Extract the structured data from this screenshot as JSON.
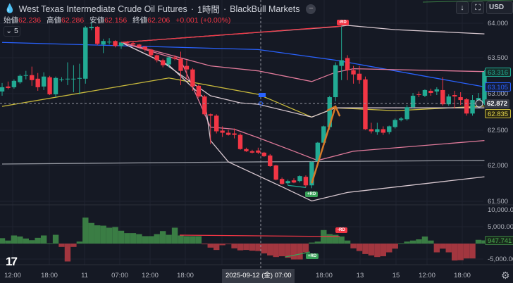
{
  "header": {
    "symbol_icon": "oil-drop-icon",
    "title": "West Texas Intermediate Crude Oil Futures",
    "interval": "1時間",
    "broker": "BlackBull Markets",
    "separator": "·"
  },
  "ohlc": {
    "open_label": "始値",
    "open": "62.236",
    "high_label": "高値",
    "high": "62.286",
    "low_label": "安値",
    "low": "62.156",
    "close_label": "終値",
    "close": "62.206",
    "change": "+0.001 (+0.00%)"
  },
  "indicators_toggle": {
    "icon": "chevron-down-icon",
    "count": "5"
  },
  "toolbar": {
    "scroll_icon": "arrow-down-icon",
    "fullscreen_icon": "fullscreen-icon",
    "currency": "USD"
  },
  "colors": {
    "background": "#151924",
    "up": "#22ab94",
    "down": "#f23645",
    "hist_up": "#3a7d44",
    "hist_down": "#a2363f",
    "ma_blue": "#2962ff",
    "ma_yellow": "#c8b93c",
    "band_pink": "#e07a9a",
    "band_white": "#d8c8d0",
    "gray_line": "#9598a1"
  },
  "price_axis": {
    "labels": [
      "64.000",
      "63.500",
      "63.000",
      "62.500",
      "62.000",
      "61.500"
    ],
    "last_close": "63.316",
    "blue_ma": "63.105",
    "crosshair": "62.872",
    "yellow_ma": "62.835"
  },
  "hist_axis": {
    "labels": [
      "10,000.00",
      "5,000.00",
      "-5,000.00"
    ],
    "last": "947.741"
  },
  "time_axis": {
    "labels": [
      "12:00",
      "18:00",
      "11",
      "07:00",
      "12:00",
      "18:00",
      "18:00",
      "13",
      "15",
      "12:00",
      "18:00"
    ],
    "crosshair": "2025-09-12 (金)  07:00",
    "settings_icon": "gear-icon"
  },
  "annotations": {
    "rd_top": "-RD",
    "rd_bottom": "+RD",
    "hist_rd_top": "-RD",
    "hist_rd_bottom": "+RD"
  },
  "logo": "TV",
  "chart_data": {
    "type": "candlestick",
    "ylim": [
      61.45,
      64.15
    ],
    "candles": [
      [
        63.04,
        63.16,
        62.98,
        63.1
      ],
      [
        63.11,
        63.18,
        63.07,
        63.09
      ],
      [
        63.1,
        63.21,
        63.08,
        63.19
      ],
      [
        63.17,
        63.28,
        63.15,
        63.26
      ],
      [
        63.27,
        63.33,
        63.21,
        63.27
      ],
      [
        63.27,
        63.39,
        63.12,
        63.2
      ],
      [
        63.22,
        63.3,
        63.05,
        63.1
      ],
      [
        63.11,
        63.31,
        63.06,
        63.25
      ],
      [
        63.24,
        63.26,
        62.99,
        63.0
      ],
      [
        63.0,
        63.25,
        62.96,
        63.23
      ],
      [
        63.2,
        63.24,
        63.18,
        63.21
      ],
      [
        63.22,
        63.45,
        63.13,
        63.22
      ],
      [
        63.22,
        63.41,
        63.03,
        63.22
      ],
      [
        63.23,
        63.43,
        63.0,
        63.23
      ],
      [
        63.22,
        63.96,
        63.15,
        63.94
      ],
      [
        63.93,
        64.02,
        63.9,
        63.95
      ],
      [
        63.95,
        63.96,
        63.69,
        63.71
      ],
      [
        63.7,
        63.78,
        63.58,
        63.75
      ],
      [
        63.74,
        63.79,
        63.7,
        63.74
      ],
      [
        63.75,
        63.76,
        63.66,
        63.68
      ],
      [
        63.68,
        63.74,
        63.64,
        63.73
      ],
      [
        63.73,
        63.75,
        63.7,
        63.72
      ],
      [
        63.72,
        63.74,
        63.68,
        63.7
      ],
      [
        63.7,
        63.71,
        63.66,
        63.67
      ],
      [
        63.67,
        63.68,
        63.6,
        63.63
      ],
      [
        63.63,
        63.64,
        63.52,
        63.55
      ],
      [
        63.55,
        63.56,
        63.45,
        63.48
      ],
      [
        63.48,
        63.5,
        63.38,
        63.41
      ],
      [
        63.42,
        63.53,
        63.38,
        63.52
      ],
      [
        63.52,
        63.55,
        63.48,
        63.5
      ],
      [
        63.5,
        63.6,
        63.13,
        63.33
      ],
      [
        63.4,
        63.48,
        63.2,
        63.35
      ],
      [
        63.35,
        63.37,
        63.05,
        63.11
      ],
      [
        63.12,
        63.14,
        62.95,
        62.97
      ],
      [
        62.97,
        62.99,
        62.7,
        62.72
      ],
      [
        62.72,
        62.73,
        62.3,
        62.7
      ],
      [
        62.7,
        62.72,
        62.45,
        62.48
      ],
      [
        62.49,
        62.55,
        62.4,
        62.46
      ],
      [
        62.46,
        62.5,
        62.42,
        62.43
      ],
      [
        62.45,
        62.52,
        62.38,
        62.43
      ],
      [
        62.43,
        62.45,
        62.22,
        62.23
      ],
      [
        62.23,
        62.25,
        62.19,
        62.2
      ],
      [
        62.2,
        62.22,
        62.17,
        62.18
      ],
      [
        62.21,
        62.25,
        62.16,
        62.18
      ],
      [
        62.18,
        62.19,
        62.12,
        62.13
      ],
      [
        62.14,
        62.16,
        61.98,
        61.99
      ],
      [
        62.0,
        62.01,
        61.79,
        61.8
      ],
      [
        61.81,
        61.83,
        61.73,
        61.74
      ],
      [
        61.75,
        61.8,
        61.72,
        61.78
      ],
      [
        61.79,
        61.82,
        61.75,
        61.76
      ],
      [
        61.78,
        61.86,
        61.76,
        61.85
      ],
      [
        61.84,
        61.86,
        61.69,
        61.72
      ],
      [
        61.72,
        62.06,
        61.68,
        62.05
      ],
      [
        62.06,
        62.33,
        62.0,
        62.32
      ],
      [
        62.32,
        62.56,
        62.28,
        62.55
      ],
      [
        62.54,
        62.98,
        62.5,
        62.96
      ],
      [
        62.96,
        63.45,
        62.9,
        63.41
      ],
      [
        63.4,
        63.99,
        63.2,
        63.48
      ],
      [
        63.51,
        63.55,
        63.2,
        63.34
      ],
      [
        63.34,
        63.4,
        63.15,
        63.28
      ],
      [
        63.29,
        63.4,
        63.15,
        63.2
      ],
      [
        63.21,
        63.25,
        62.5,
        62.51
      ],
      [
        62.51,
        62.6,
        62.45,
        62.48
      ],
      [
        62.47,
        62.6,
        62.43,
        62.51
      ],
      [
        62.51,
        62.55,
        62.43,
        62.46
      ],
      [
        62.47,
        62.56,
        62.44,
        62.55
      ],
      [
        62.54,
        62.66,
        62.52,
        62.64
      ],
      [
        62.64,
        62.68,
        62.62,
        62.66
      ],
      [
        62.65,
        62.85,
        62.63,
        62.82
      ],
      [
        62.82,
        63.02,
        62.8,
        62.98
      ],
      [
        63.0,
        63.04,
        62.96,
        62.99
      ],
      [
        62.98,
        63.07,
        62.96,
        63.06
      ],
      [
        63.05,
        63.08,
        62.98,
        63.02
      ],
      [
        63.04,
        63.1,
        62.99,
        63.07
      ],
      [
        63.06,
        63.24,
        62.84,
        62.86
      ],
      [
        62.86,
        63.0,
        62.84,
        62.97
      ],
      [
        62.99,
        63.05,
        62.8,
        62.97
      ],
      [
        62.96,
        63.03,
        62.85,
        62.92
      ],
      [
        62.93,
        62.95,
        62.7,
        62.73
      ],
      [
        62.73,
        62.99,
        62.7,
        62.92
      ],
      [
        62.92,
        63.02,
        62.88,
        62.95
      ],
      [
        62.87,
        63.34,
        62.85,
        63.316
      ]
    ],
    "overlays": [
      {
        "color": "#2962ff",
        "points": [
          [
            0,
            63.73
          ],
          [
            43,
            63.63
          ],
          [
            56,
            63.48
          ],
          [
            81,
            63.105
          ]
        ]
      },
      {
        "color": "#c8b93c",
        "points": [
          [
            0,
            62.83
          ],
          [
            28,
            63.23
          ],
          [
            43,
            63.0
          ],
          [
            52,
            62.68
          ],
          [
            56,
            62.81
          ],
          [
            66,
            62.77
          ],
          [
            81,
            62.835
          ]
        ]
      },
      {
        "color": "#9598a1",
        "points": [
          [
            0,
            62.02
          ],
          [
            43,
            62.05
          ],
          [
            81,
            62.07
          ]
        ]
      },
      {
        "color": "#d8c8d0",
        "points": [
          [
            20,
            63.73
          ],
          [
            28,
            63.78
          ],
          [
            56,
            63.95
          ],
          [
            58,
            63.97
          ],
          [
            66,
            63.91
          ],
          [
            81,
            63.85
          ]
        ]
      },
      {
        "color": "#e07a9a",
        "points": [
          [
            20,
            63.73
          ],
          [
            27,
            63.58
          ],
          [
            35,
            63.4
          ],
          [
            43,
            63.33
          ],
          [
            52,
            63.18
          ],
          [
            56,
            63.31
          ],
          [
            59,
            63.36
          ],
          [
            81,
            63.32
          ]
        ]
      },
      {
        "color": "#e07a9a",
        "points": [
          [
            20,
            63.73
          ],
          [
            30,
            63.48
          ],
          [
            35,
            62.54
          ],
          [
            39,
            62.51
          ],
          [
            43,
            62.39
          ],
          [
            49,
            62.2
          ],
          [
            53,
            62.07
          ],
          [
            59,
            62.2
          ],
          [
            81,
            62.35
          ]
        ]
      },
      {
        "color": "#d8c8d0",
        "points": [
          [
            20,
            63.73
          ],
          [
            27,
            63.45
          ],
          [
            35,
            62.98
          ],
          [
            40,
            62.88
          ],
          [
            43,
            62.86
          ],
          [
            52,
            62.68
          ],
          [
            56,
            62.81
          ],
          [
            81,
            62.81
          ]
        ]
      },
      {
        "color": "#d8c8d0",
        "points": [
          [
            20,
            63.73
          ],
          [
            28,
            63.41
          ],
          [
            34,
            62.94
          ],
          [
            35,
            62.35
          ],
          [
            38,
            62.05
          ],
          [
            47,
            61.7
          ],
          [
            52,
            61.5
          ],
          [
            58,
            61.62
          ],
          [
            81,
            61.84
          ]
        ]
      }
    ],
    "trendlines": [
      {
        "color": "#f23645",
        "from": [
          20,
          63.73
        ],
        "to": [
          57,
          63.96
        ]
      },
      {
        "color": "#22ab94",
        "from": [
          48,
          61.72
        ],
        "to": [
          51,
          61.69
        ]
      },
      {
        "color": "#d67a2a",
        "from": [
          52,
          61.75
        ],
        "to": [
          56,
          62.83
        ],
        "arrow": true
      }
    ],
    "histogram": {
      "ylim": [
        -6500,
        11000
      ],
      "values": [
        1600,
        900,
        2400,
        2100,
        1500,
        1000,
        1700,
        2400,
        100,
        2600,
        -1000,
        -5300,
        -1000,
        600,
        7700,
        6100,
        5400,
        5300,
        4700,
        4900,
        3800,
        3100,
        3100,
        2800,
        2200,
        2200,
        2800,
        3700,
        2600,
        4700,
        2400,
        2200,
        2200,
        2200,
        -200,
        -1200,
        -1900,
        -500,
        -100,
        -1400,
        -2000,
        -1900,
        -2100,
        -2200,
        -2900,
        -3500,
        -4000,
        -3750,
        -4200,
        -4700,
        -4700,
        -2600,
        300,
        600,
        4000,
        2800,
        2600,
        2100,
        900,
        -1400,
        -2200,
        -3100,
        -3500,
        -4000,
        -3750,
        -2600,
        -1500,
        100,
        600,
        900,
        1250,
        2100,
        900,
        -2600,
        -1500,
        -2600,
        -5000,
        -4900,
        -4400,
        -4400,
        1100,
        947.741
      ]
    },
    "crosshair": {
      "time": "2025-09-12 07:00",
      "price": 62.872
    }
  }
}
